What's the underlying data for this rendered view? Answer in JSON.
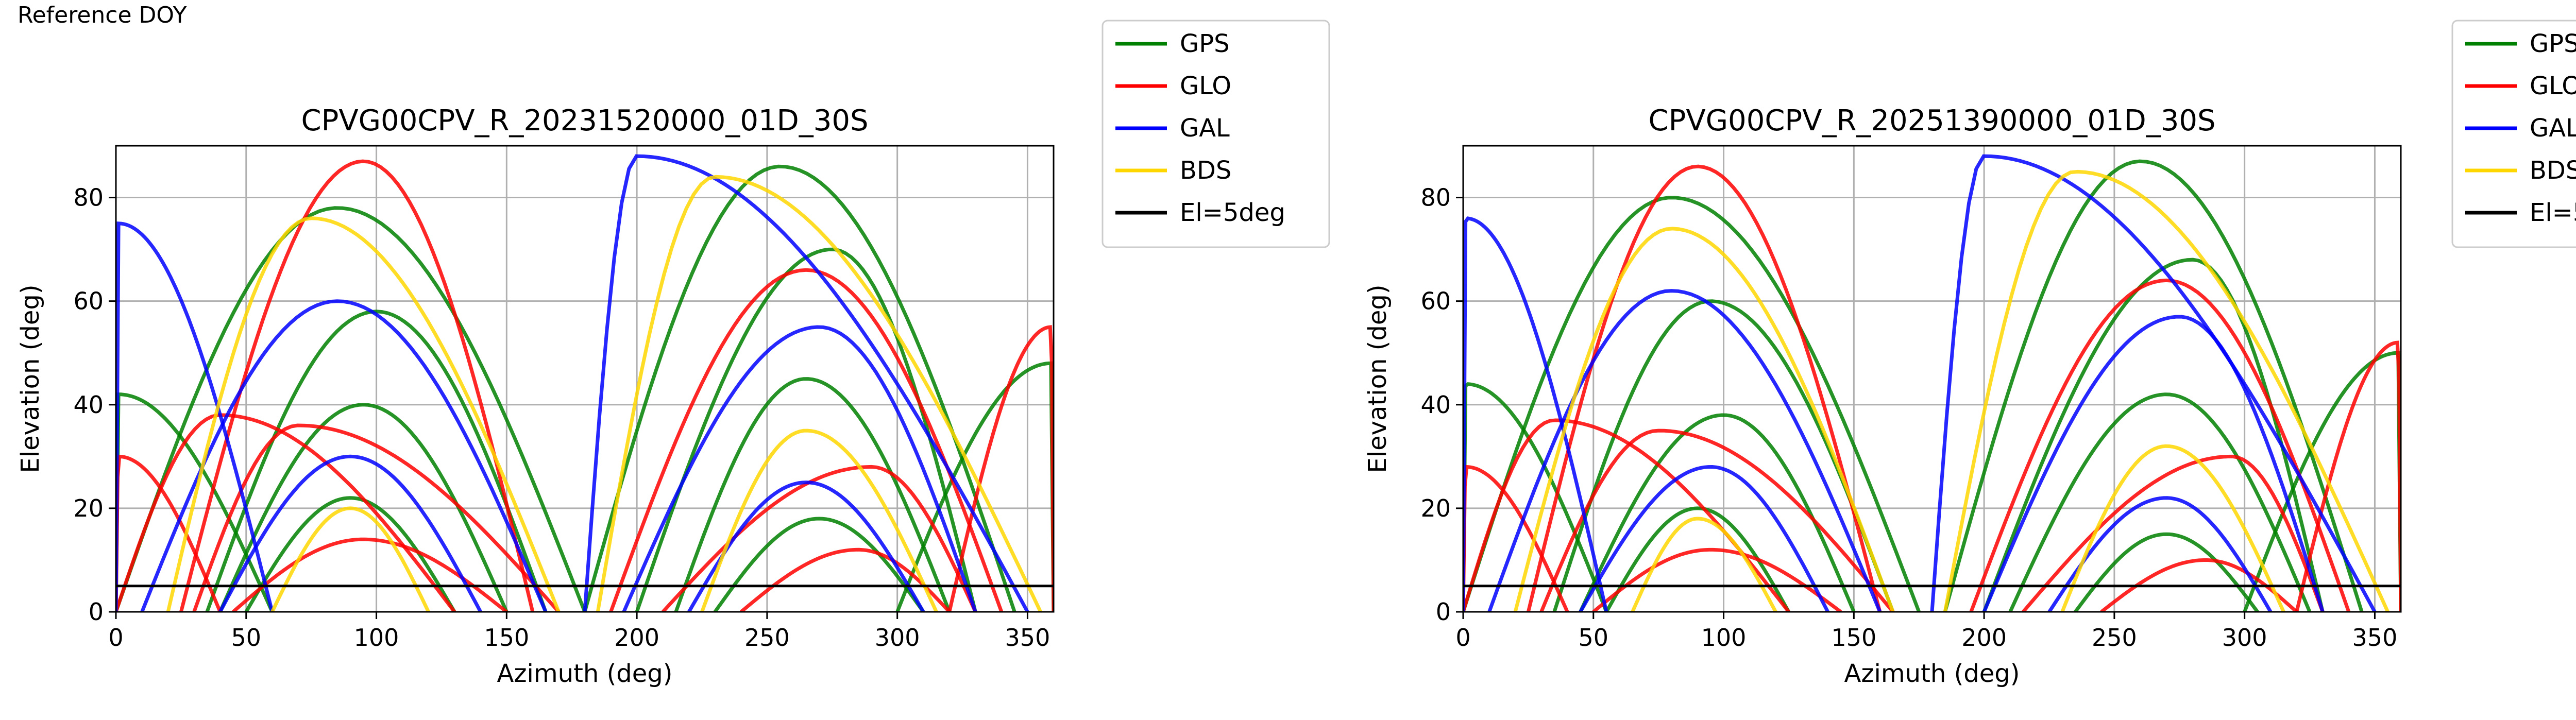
{
  "header": {
    "label": "Reference DOY"
  },
  "legend_entries": [
    {
      "label": "GPS",
      "color": "#008000"
    },
    {
      "label": "GLO",
      "color": "#ff0000"
    },
    {
      "label": "GAL",
      "color": "#0000ff"
    },
    {
      "label": "BDS",
      "color": "#ffd700"
    },
    {
      "label": "El=5deg",
      "color": "#000000"
    }
  ],
  "chart_data": [
    {
      "type": "line",
      "title": "CPVG00CPV_R_20231520000_01D_30S",
      "xlabel": "Azimuth (deg)",
      "ylabel": "Elevation (deg)",
      "xlim": [
        0,
        360
      ],
      "ylim": [
        0,
        90
      ],
      "xticks": [
        0,
        50,
        100,
        150,
        200,
        250,
        300,
        350
      ],
      "yticks": [
        0,
        20,
        40,
        60,
        80
      ],
      "grid": true,
      "legend_position": "outside-right",
      "reference_line": {
        "name": "El=5deg",
        "y": 5
      },
      "series": [
        {
          "name": "GPS",
          "color": "#008000",
          "arcs": [
            {
              "az_start": 35,
              "az_end": 165,
              "max_el": 58,
              "az_peak": 100
            },
            {
              "az_start": 0,
              "az_end": 180,
              "max_el": 78,
              "az_peak": 85
            },
            {
              "az_start": 40,
              "az_end": 150,
              "max_el": 40,
              "az_peak": 95
            },
            {
              "az_start": 50,
              "az_end": 130,
              "max_el": 22,
              "az_peak": 90
            },
            {
              "az_start": 200,
              "az_end": 330,
              "max_el": 70,
              "az_peak": 275
            },
            {
              "az_start": 215,
              "az_end": 320,
              "max_el": 45,
              "az_peak": 265
            },
            {
              "az_start": 180,
              "az_end": 345,
              "max_el": 86,
              "az_peak": 255
            },
            {
              "az_start": 230,
              "az_end": 310,
              "max_el": 18,
              "az_peak": 270
            },
            {
              "az_start": 300,
              "az_end": 360,
              "max_el": 48,
              "az_peak": 360
            },
            {
              "az_start": 0,
              "az_end": 60,
              "max_el": 42,
              "az_peak": 0
            }
          ]
        },
        {
          "name": "GLO",
          "color": "#ff0000",
          "arcs": [
            {
              "az_start": 25,
              "az_end": 160,
              "max_el": 87,
              "az_peak": 95
            },
            {
              "az_start": 30,
              "az_end": 170,
              "max_el": 36,
              "az_peak": 70
            },
            {
              "az_start": 0,
              "az_end": 130,
              "max_el": 38,
              "az_peak": 40
            },
            {
              "az_start": 45,
              "az_end": 150,
              "max_el": 14,
              "az_peak": 95
            },
            {
              "az_start": 210,
              "az_end": 330,
              "max_el": 28,
              "az_peak": 290
            },
            {
              "az_start": 190,
              "az_end": 340,
              "max_el": 66,
              "az_peak": 265
            },
            {
              "az_start": 240,
              "az_end": 320,
              "max_el": 12,
              "az_peak": 285
            },
            {
              "az_start": 320,
              "az_end": 360,
              "max_el": 55,
              "az_peak": 360
            },
            {
              "az_start": 0,
              "az_end": 40,
              "max_el": 30,
              "az_peak": 0
            }
          ]
        },
        {
          "name": "GAL",
          "color": "#0000ff",
          "arcs": [
            {
              "az_start": 10,
              "az_end": 165,
              "max_el": 60,
              "az_peak": 85
            },
            {
              "az_start": 40,
              "az_end": 140,
              "max_el": 30,
              "az_peak": 90
            },
            {
              "az_start": 180,
              "az_end": 350,
              "max_el": 88,
              "az_peak": 200
            },
            {
              "az_start": 195,
              "az_end": 330,
              "max_el": 55,
              "az_peak": 270
            },
            {
              "az_start": 220,
              "az_end": 310,
              "max_el": 25,
              "az_peak": 265
            },
            {
              "az_start": 0,
              "az_end": 60,
              "max_el": 75,
              "az_peak": 0
            }
          ]
        },
        {
          "name": "BDS",
          "color": "#ffd700",
          "arcs": [
            {
              "az_start": 20,
              "az_end": 170,
              "max_el": 76,
              "az_peak": 75
            },
            {
              "az_start": 60,
              "az_end": 120,
              "max_el": 20,
              "az_peak": 90
            },
            {
              "az_start": 185,
              "az_end": 355,
              "max_el": 84,
              "az_peak": 230
            },
            {
              "az_start": 225,
              "az_end": 315,
              "max_el": 35,
              "az_peak": 265
            }
          ]
        }
      ]
    },
    {
      "type": "line",
      "title": "CPVG00CPV_R_20251390000_01D_30S",
      "xlabel": "Azimuth (deg)",
      "ylabel": "Elevation (deg)",
      "xlim": [
        0,
        360
      ],
      "ylim": [
        0,
        90
      ],
      "xticks": [
        0,
        50,
        100,
        150,
        200,
        250,
        300,
        350
      ],
      "yticks": [
        0,
        20,
        40,
        60,
        80
      ],
      "grid": true,
      "legend_position": "outside-right",
      "reference_line": {
        "name": "El=5deg",
        "y": 5
      },
      "series": [
        {
          "name": "GPS",
          "color": "#008000",
          "arcs": [
            {
              "az_start": 35,
              "az_end": 165,
              "max_el": 60,
              "az_peak": 95
            },
            {
              "az_start": 0,
              "az_end": 175,
              "max_el": 80,
              "az_peak": 80
            },
            {
              "az_start": 45,
              "az_end": 150,
              "max_el": 38,
              "az_peak": 100
            },
            {
              "az_start": 55,
              "az_end": 125,
              "max_el": 20,
              "az_peak": 90
            },
            {
              "az_start": 200,
              "az_end": 330,
              "max_el": 68,
              "az_peak": 280
            },
            {
              "az_start": 210,
              "az_end": 325,
              "max_el": 42,
              "az_peak": 270
            },
            {
              "az_start": 185,
              "az_end": 345,
              "max_el": 87,
              "az_peak": 260
            },
            {
              "az_start": 235,
              "az_end": 305,
              "max_el": 15,
              "az_peak": 270
            },
            {
              "az_start": 300,
              "az_end": 360,
              "max_el": 50,
              "az_peak": 360
            },
            {
              "az_start": 0,
              "az_end": 55,
              "max_el": 44,
              "az_peak": 0
            }
          ]
        },
        {
          "name": "GLO",
          "color": "#ff0000",
          "arcs": [
            {
              "az_start": 25,
              "az_end": 160,
              "max_el": 86,
              "az_peak": 90
            },
            {
              "az_start": 30,
              "az_end": 165,
              "max_el": 35,
              "az_peak": 75
            },
            {
              "az_start": 0,
              "az_end": 125,
              "max_el": 37,
              "az_peak": 35
            },
            {
              "az_start": 50,
              "az_end": 145,
              "max_el": 12,
              "az_peak": 95
            },
            {
              "az_start": 215,
              "az_end": 330,
              "max_el": 30,
              "az_peak": 295
            },
            {
              "az_start": 195,
              "az_end": 340,
              "max_el": 64,
              "az_peak": 270
            },
            {
              "az_start": 245,
              "az_end": 320,
              "max_el": 10,
              "az_peak": 285
            },
            {
              "az_start": 320,
              "az_end": 360,
              "max_el": 52,
              "az_peak": 360
            },
            {
              "az_start": 0,
              "az_end": 40,
              "max_el": 28,
              "az_peak": 0
            }
          ]
        },
        {
          "name": "GAL",
          "color": "#0000ff",
          "arcs": [
            {
              "az_start": 10,
              "az_end": 160,
              "max_el": 62,
              "az_peak": 80
            },
            {
              "az_start": 45,
              "az_end": 140,
              "max_el": 28,
              "az_peak": 95
            },
            {
              "az_start": 180,
              "az_end": 350,
              "max_el": 88,
              "az_peak": 200
            },
            {
              "az_start": 200,
              "az_end": 330,
              "max_el": 57,
              "az_peak": 275
            },
            {
              "az_start": 225,
              "az_end": 310,
              "max_el": 22,
              "az_peak": 270
            },
            {
              "az_start": 0,
              "az_end": 55,
              "max_el": 76,
              "az_peak": 0
            }
          ]
        },
        {
          "name": "BDS",
          "color": "#ffd700",
          "arcs": [
            {
              "az_start": 20,
              "az_end": 165,
              "max_el": 74,
              "az_peak": 80
            },
            {
              "az_start": 65,
              "az_end": 120,
              "max_el": 18,
              "az_peak": 90
            },
            {
              "az_start": 185,
              "az_end": 355,
              "max_el": 85,
              "az_peak": 235
            },
            {
              "az_start": 230,
              "az_end": 315,
              "max_el": 32,
              "az_peak": 270
            }
          ]
        }
      ]
    }
  ]
}
